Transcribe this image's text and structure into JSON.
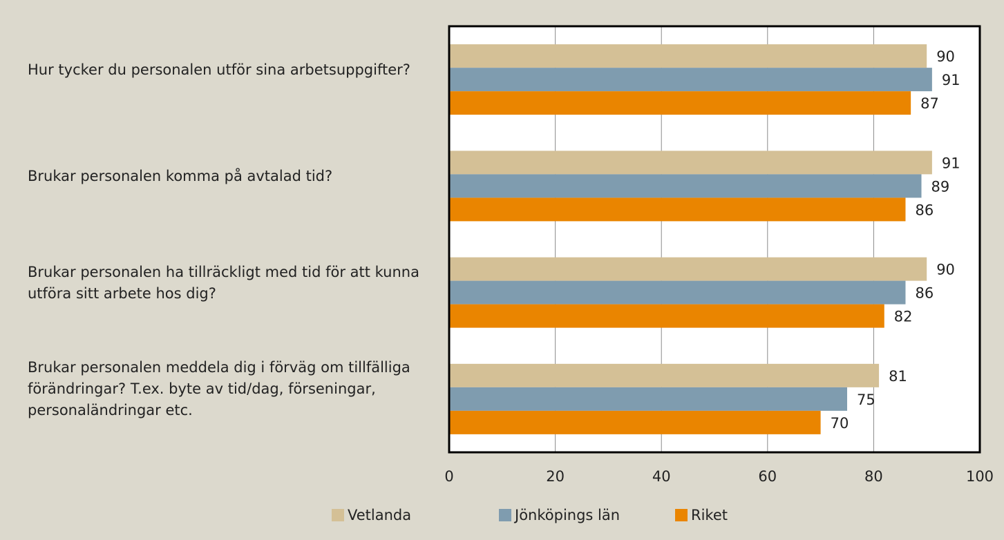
{
  "chart_data": {
    "type": "bar",
    "orientation": "horizontal",
    "categories": [
      "Hur tycker du personalen utför sina arbetsuppgifter?",
      "Brukar personalen komma på avtalad tid?",
      "Brukar personalen ha tillräckligt med tid för att kunna utföra sitt arbete hos dig?",
      "Brukar personalen meddela dig i förväg om tillfälliga förändringar? T.ex. byte av tid/dag, förseningar, personaländringar etc."
    ],
    "series": [
      {
        "name": "Vetlanda",
        "color": "#d4c096",
        "values": [
          90,
          91,
          90,
          81
        ]
      },
      {
        "name": "Jönköpings län",
        "color": "#7f9caf",
        "values": [
          91,
          89,
          86,
          75
        ]
      },
      {
        "name": "Riket",
        "color": "#ea8500",
        "values": [
          87,
          86,
          82,
          70
        ]
      }
    ],
    "xlim": [
      0,
      100
    ],
    "xticks": [
      0,
      20,
      40,
      60,
      80,
      100
    ],
    "grid": true,
    "legend": "bottom"
  }
}
